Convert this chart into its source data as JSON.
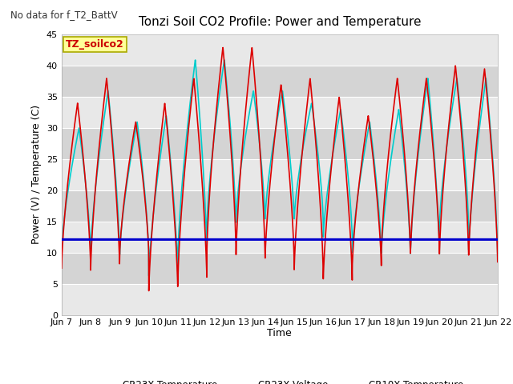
{
  "title": "Tonzi Soil CO2 Profile: Power and Temperature",
  "subtitle": "No data for f_T2_BattV",
  "ylabel": "Power (V) / Temperature (C)",
  "xlabel": "Time",
  "legend_label": "TZ_soilco2",
  "ylim": [
    0,
    45
  ],
  "yticks": [
    0,
    5,
    10,
    15,
    20,
    25,
    30,
    35,
    40,
    45
  ],
  "xtick_labels": [
    "Jun 7",
    "Jun 8",
    "Jun 9",
    "Jun 10",
    "Jun 11",
    "Jun 12",
    "Jun 13",
    "Jun 14",
    "Jun 15",
    "Jun 16",
    "Jun 17",
    "Jun 18",
    "Jun 19",
    "Jun 20",
    "Jun 21",
    "Jun 22"
  ],
  "fig_bg_color": "#ffffff",
  "plot_bg_color": "#e8e8e8",
  "cr23x_temp_color": "#dd0000",
  "cr23x_volt_color": "#0000cc",
  "cr10x_temp_color": "#00cccc",
  "voltage_value": 12.1,
  "line_width": 1.2,
  "grid_color": "#ffffff",
  "legend_box_color": "#ffff99",
  "legend_box_edge": "#aaaa00",
  "band_colors": [
    "#e0e0e0",
    "#d0d0d0"
  ]
}
